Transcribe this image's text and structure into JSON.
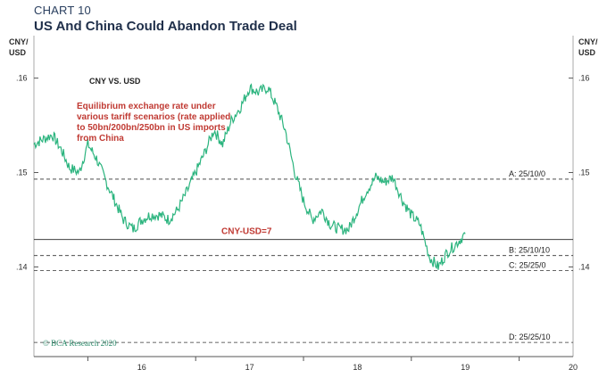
{
  "header": {
    "chart_number": "CHART 10",
    "title": "US And China Could Abandon Trade Deal"
  },
  "colors": {
    "series": "#2bb47e",
    "axis": "#555555",
    "frame": "#aaaaaa",
    "annotation_red": "#c03a33",
    "watermark": "#2a8a6a"
  },
  "chart_data": {
    "type": "line",
    "unit_label_left": [
      "CNY/",
      "USD"
    ],
    "unit_label_right": [
      "CNY/",
      "USD"
    ],
    "series_label": "CNY VS. USD",
    "annotation": [
      "Equilibrium exchange rate under",
      "various tariff scenarios (rate applied",
      "to 50bn/200bn/250bn in US imports",
      "from China"
    ],
    "watermark": "© BCA Research 2020",
    "x_range": [
      2015.5,
      2020.5
    ],
    "x_ticks": [
      {
        "value": 2016,
        "label": "16"
      },
      {
        "value": 2017,
        "label": "17"
      },
      {
        "value": 2018,
        "label": "18"
      },
      {
        "value": 2019,
        "label": "19"
      },
      {
        "value": 2020,
        "label": "20"
      }
    ],
    "y_range": [
      0.1305,
      0.1645
    ],
    "y_ticks": [
      {
        "value": 0.14,
        "label": ".14"
      },
      {
        "value": 0.15,
        "label": ".15"
      },
      {
        "value": 0.16,
        "label": ".16"
      }
    ],
    "reference_lines": [
      {
        "label": "A: 25/10/0",
        "value": 0.1493,
        "style": "dashed"
      },
      {
        "label": "B: 25/10/10",
        "value": 0.1412,
        "style": "dashed"
      },
      {
        "label": "C: 25/25/0",
        "value": 0.1396,
        "style": "dashed"
      },
      {
        "label": "D: 25/25/10",
        "value": 0.132,
        "style": "dashed"
      }
    ],
    "threshold": {
      "label": "CNY-USD=7",
      "value": 0.1429
    },
    "series": [
      {
        "name": "CNY VS. USD",
        "x": [
          2015.5,
          2015.58,
          2015.67,
          2015.75,
          2015.83,
          2015.92,
          2016.0,
          2016.08,
          2016.17,
          2016.25,
          2016.33,
          2016.42,
          2016.5,
          2016.58,
          2016.67,
          2016.75,
          2016.83,
          2016.92,
          2017.0,
          2017.08,
          2017.17,
          2017.25,
          2017.33,
          2017.42,
          2017.5,
          2017.58,
          2017.67,
          2017.75,
          2017.83,
          2017.92,
          2018.0,
          2018.08,
          2018.17,
          2018.25,
          2018.33,
          2018.42,
          2018.5,
          2018.58,
          2018.67,
          2018.75,
          2018.83,
          2018.92,
          2019.0,
          2019.08,
          2019.17,
          2019.25,
          2019.33,
          2019.42,
          2019.5
        ],
        "values": [
          0.153,
          0.1535,
          0.154,
          0.1525,
          0.1505,
          0.15,
          0.153,
          0.1515,
          0.149,
          0.147,
          0.145,
          0.144,
          0.145,
          0.1455,
          0.1455,
          0.145,
          0.146,
          0.148,
          0.15,
          0.152,
          0.1545,
          0.153,
          0.1555,
          0.157,
          0.159,
          0.1585,
          0.159,
          0.157,
          0.1545,
          0.15,
          0.147,
          0.145,
          0.146,
          0.1445,
          0.144,
          0.144,
          0.146,
          0.148,
          0.1495,
          0.149,
          0.1495,
          0.147,
          0.1455,
          0.1445,
          0.141,
          0.14,
          0.1415,
          0.1425,
          0.1435
        ]
      }
    ]
  }
}
